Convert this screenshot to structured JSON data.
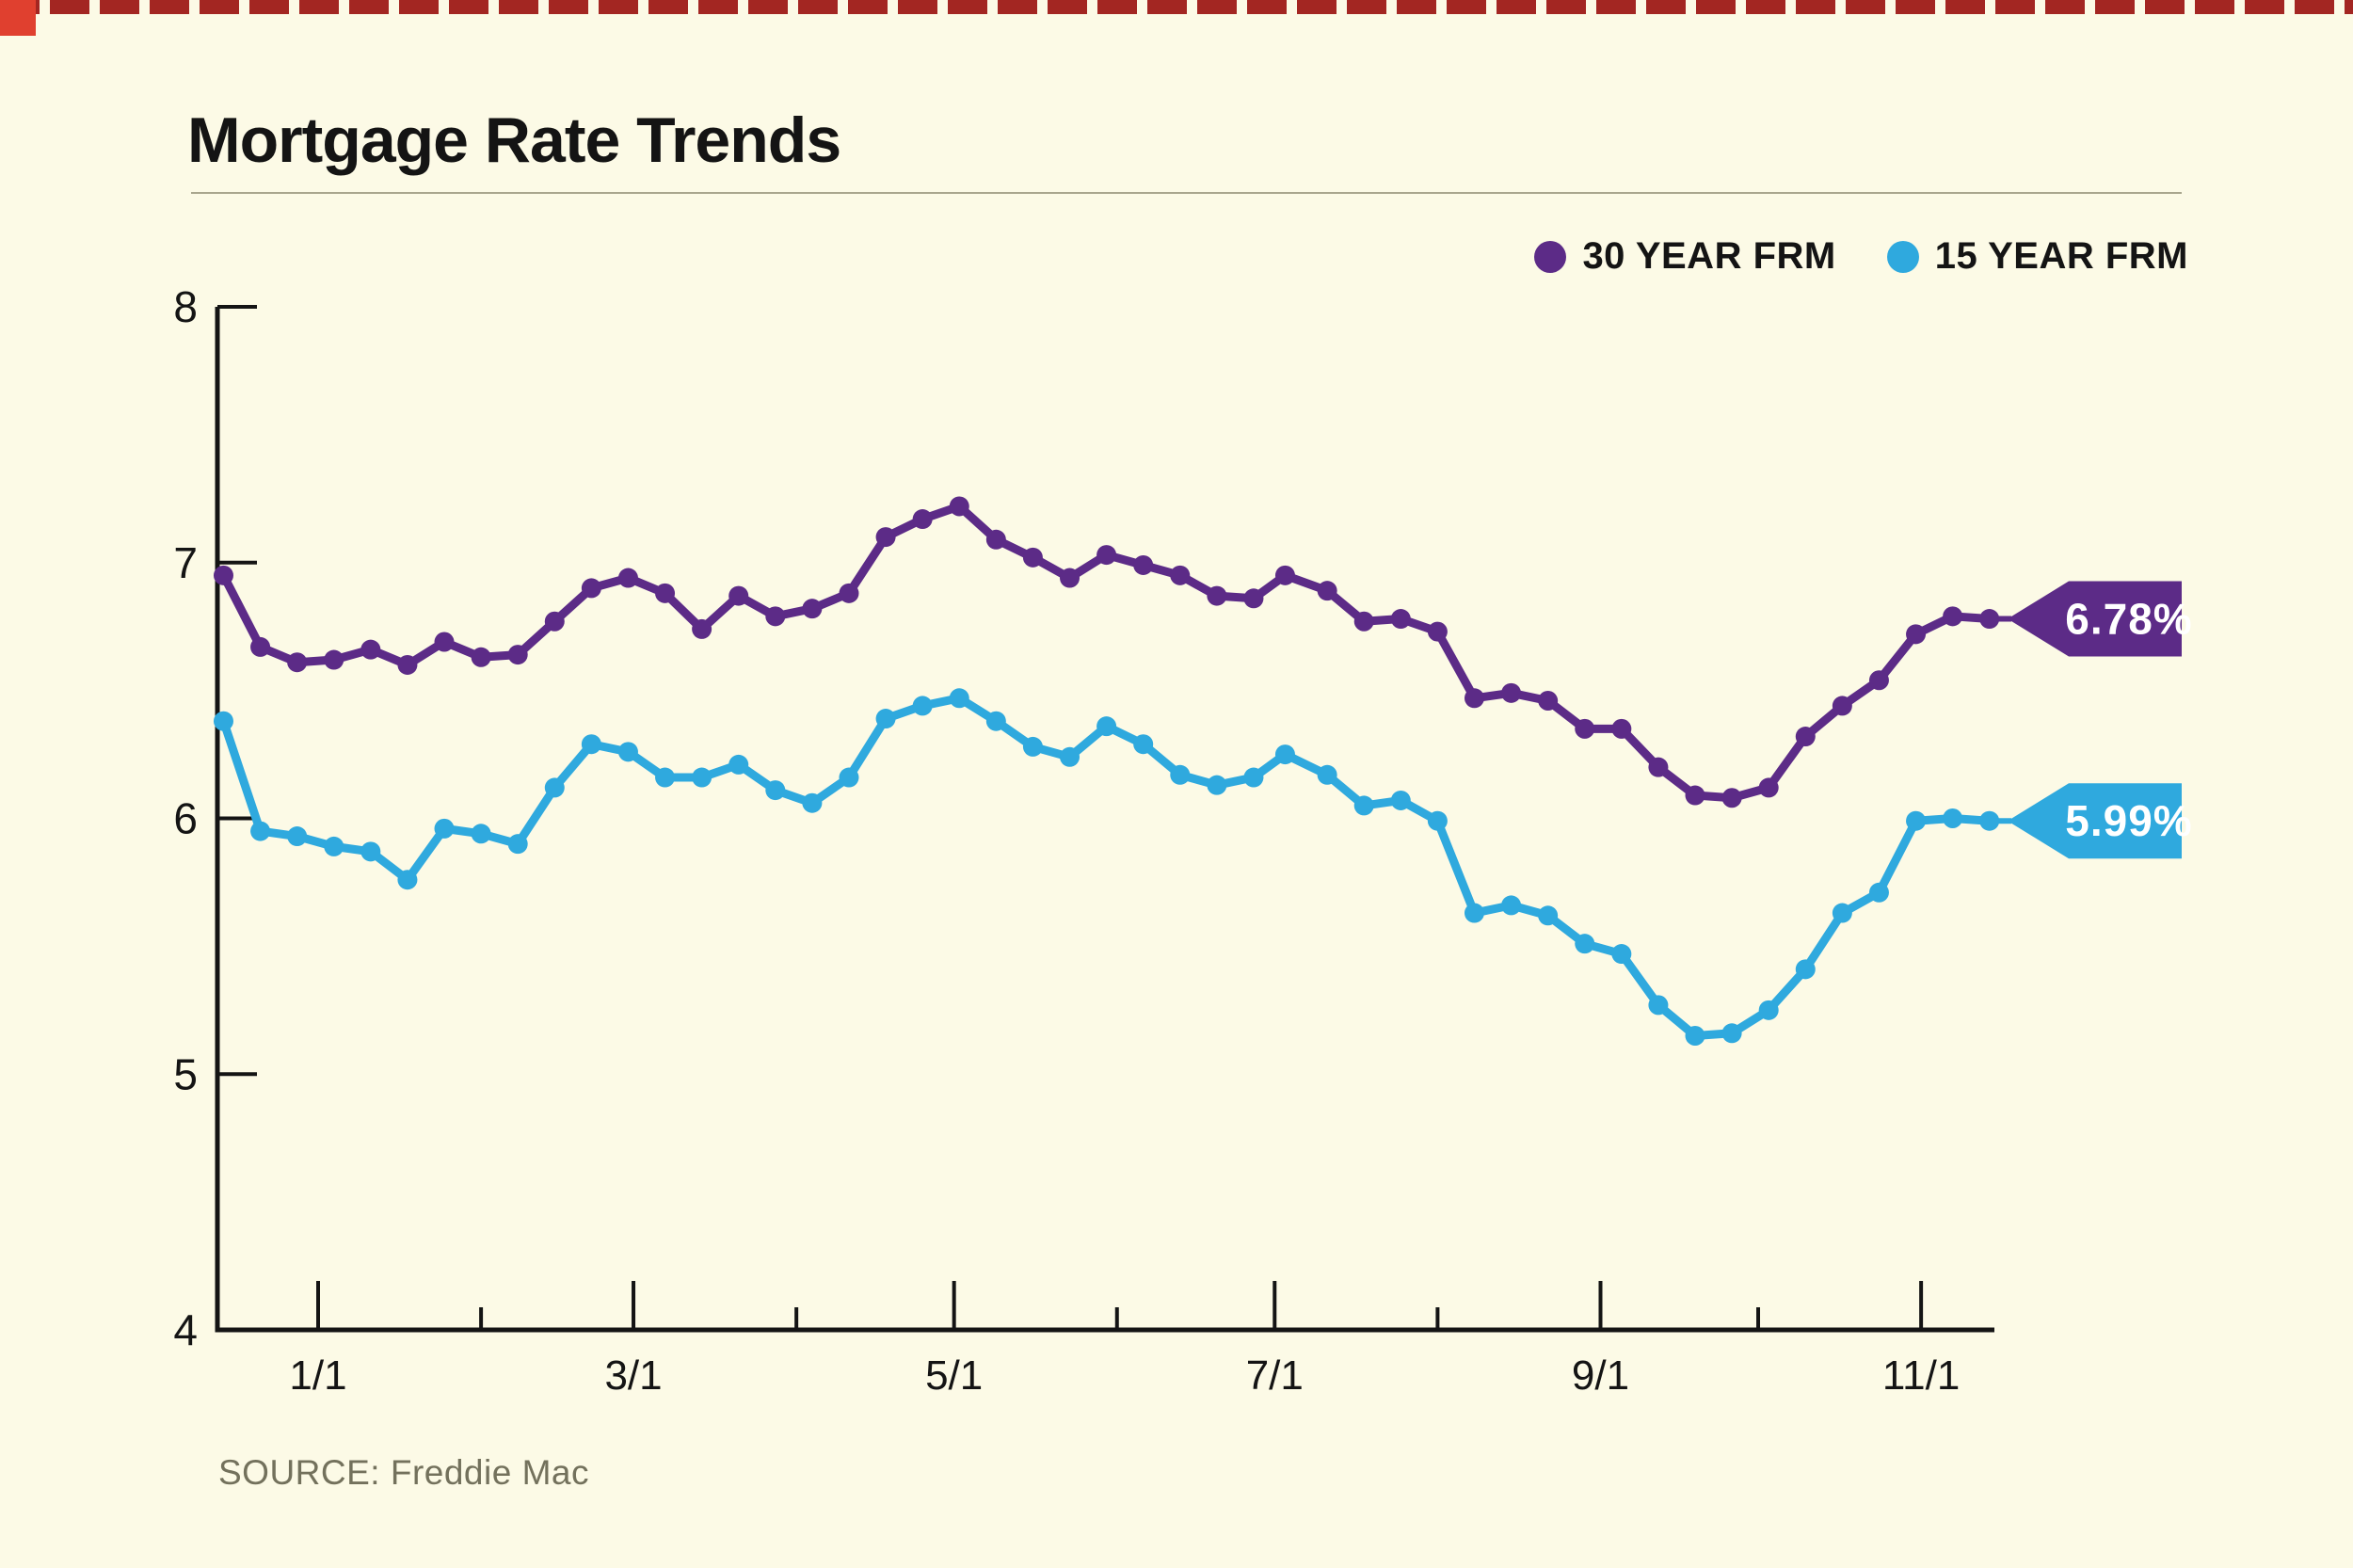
{
  "page": {
    "background": "#fcfae6"
  },
  "decor": {
    "band_color": "#a32622",
    "band_gap_color": "#fcfae6",
    "square_color": "#e0402f"
  },
  "header": {
    "title": "Mortgage Rate Trends"
  },
  "legend": [
    {
      "label": "30 YEAR FRM",
      "color": "#5c2b87"
    },
    {
      "label": "15 YEAR FRM",
      "color": "#2fa9de"
    }
  ],
  "source": {
    "text": "SOURCE: Freddie Mac"
  },
  "chart_data": {
    "type": "line",
    "title": "Mortgage Rate Trends",
    "xlabel": "",
    "ylabel": "",
    "ylim": [
      4,
      8
    ],
    "y_ticks": [
      8,
      7,
      6,
      5,
      4
    ],
    "x_tick_labels": [
      "1/1",
      "3/1",
      "5/1",
      "7/1",
      "9/1",
      "11/1"
    ],
    "grid": false,
    "legend_position": "top-right",
    "axis_color": "#141414",
    "x_dates": [
      "2023-12-14",
      "2023-12-21",
      "2023-12-28",
      "2024-01-04",
      "2024-01-11",
      "2024-01-18",
      "2024-01-25",
      "2024-02-01",
      "2024-02-08",
      "2024-02-15",
      "2024-02-22",
      "2024-02-29",
      "2024-03-07",
      "2024-03-14",
      "2024-03-21",
      "2024-03-28",
      "2024-04-04",
      "2024-04-11",
      "2024-04-18",
      "2024-04-25",
      "2024-05-02",
      "2024-05-09",
      "2024-05-16",
      "2024-05-23",
      "2024-05-30",
      "2024-06-06",
      "2024-06-13",
      "2024-06-20",
      "2024-06-27",
      "2024-07-03",
      "2024-07-11",
      "2024-07-18",
      "2024-07-25",
      "2024-08-01",
      "2024-08-08",
      "2024-08-15",
      "2024-08-22",
      "2024-08-29",
      "2024-09-05",
      "2024-09-12",
      "2024-09-19",
      "2024-09-26",
      "2024-10-03",
      "2024-10-10",
      "2024-10-17",
      "2024-10-24",
      "2024-10-31",
      "2024-11-07",
      "2024-11-14"
    ],
    "series": [
      {
        "name": "30 YEAR FRM",
        "color": "#5c2b87",
        "end_label": "6.78%",
        "values": [
          6.95,
          6.67,
          6.61,
          6.62,
          6.66,
          6.6,
          6.69,
          6.63,
          6.64,
          6.77,
          6.9,
          6.94,
          6.88,
          6.74,
          6.87,
          6.79,
          6.82,
          6.88,
          7.1,
          7.17,
          7.22,
          7.09,
          7.02,
          6.94,
          7.03,
          6.99,
          6.95,
          6.87,
          6.86,
          6.95,
          6.89,
          6.77,
          6.78,
          6.73,
          6.47,
          6.49,
          6.46,
          6.35,
          6.35,
          6.2,
          6.09,
          6.08,
          6.12,
          6.32,
          6.44,
          6.54,
          6.72,
          6.79,
          6.78
        ]
      },
      {
        "name": "15 YEAR FRM",
        "color": "#2fa9de",
        "end_label": "5.99%",
        "values": [
          6.38,
          5.95,
          5.93,
          5.89,
          5.87,
          5.76,
          5.96,
          5.94,
          5.9,
          6.12,
          6.29,
          6.26,
          6.16,
          6.16,
          6.21,
          6.11,
          6.06,
          6.16,
          6.39,
          6.44,
          6.47,
          6.38,
          6.28,
          6.24,
          6.36,
          6.29,
          6.17,
          6.13,
          6.16,
          6.25,
          6.17,
          6.05,
          6.07,
          5.99,
          5.63,
          5.66,
          5.62,
          5.51,
          5.47,
          5.27,
          5.15,
          5.16,
          5.25,
          5.41,
          5.63,
          5.71,
          5.99,
          6.0,
          5.99
        ]
      }
    ],
    "source": "SOURCE: Freddie Mac"
  }
}
